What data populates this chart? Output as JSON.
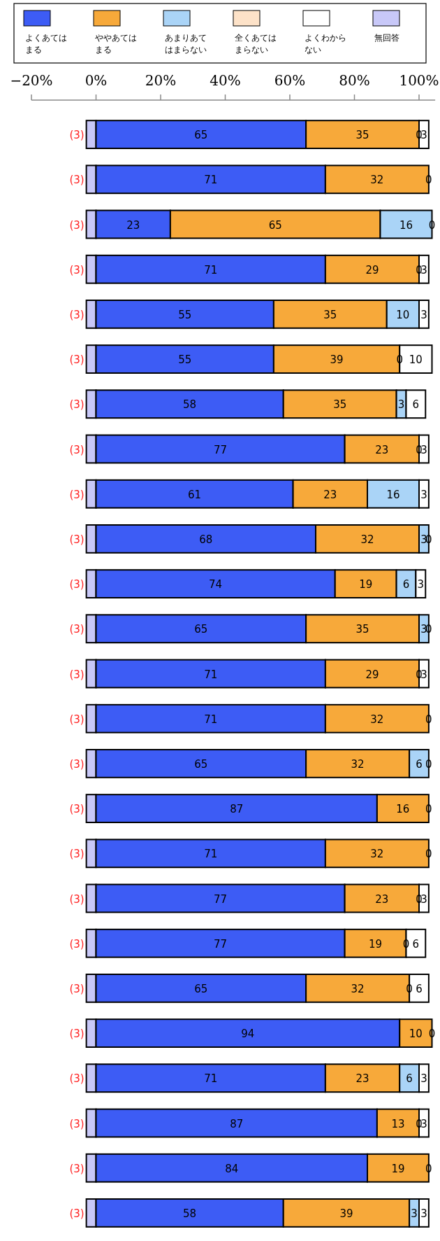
{
  "chart_data": {
    "type": "bar",
    "orientation": "horizontal",
    "stacked": true,
    "legend": "top",
    "grid": false,
    "categories": [
      null,
      null,
      null,
      null,
      null,
      null,
      null,
      null,
      null,
      null,
      null,
      null,
      null,
      null,
      null,
      null,
      null,
      null,
      null,
      null,
      null,
      null,
      null,
      null,
      null
    ],
    "xlim": [
      -20,
      105
    ],
    "xticks": [
      {
        "value": -20,
        "label": "−20%"
      },
      {
        "value": 0,
        "label": "0%"
      },
      {
        "value": 20,
        "label": "20%"
      },
      {
        "value": 40,
        "label": "40%"
      },
      {
        "value": 60,
        "label": "60%"
      },
      {
        "value": 80,
        "label": "80%"
      },
      {
        "value": 100,
        "label": "100%"
      }
    ],
    "series": [
      {
        "name": "無回答",
        "color": "#c8c8f8",
        "values": [
          -3,
          -3,
          -3,
          -3,
          -3,
          -3,
          -3,
          -3,
          -3,
          -3,
          -3,
          -3,
          -3,
          -3,
          -3,
          -3,
          -3,
          -3,
          -3,
          -3,
          -3,
          -3,
          -3,
          -3,
          -3
        ],
        "value_labels": [
          "(3)",
          "(3)",
          "(3)",
          "(3)",
          "(3)",
          "(3)",
          "(3)",
          "(3)",
          "(3)",
          "(3)",
          "(3)",
          "(3)",
          "(3)",
          "(3)",
          "(3)",
          "(3)",
          "(3)",
          "(3)",
          "(3)",
          "(3)",
          "(3)",
          "(3)",
          "(3)",
          "(3)",
          "(3)"
        ]
      },
      {
        "name": "よくあてはまる",
        "color": "#3d5cf5",
        "values": [
          65,
          71,
          23,
          71,
          55,
          55,
          58,
          77,
          61,
          68,
          74,
          65,
          71,
          71,
          65,
          87,
          71,
          77,
          77,
          65,
          94,
          71,
          87,
          84,
          58
        ],
        "value_labels": [
          "65",
          "71",
          "23",
          "71",
          "55",
          "55",
          "58",
          "77",
          "61",
          "68",
          "74",
          "65",
          "71",
          "71",
          "65",
          "87",
          "71",
          "77",
          "77",
          "65",
          "94",
          "71",
          "87",
          "84",
          "58"
        ]
      },
      {
        "name": "ややあてはまる",
        "color": "#f7a93a",
        "values": [
          35,
          32,
          65,
          29,
          35,
          39,
          35,
          23,
          23,
          32,
          19,
          35,
          29,
          32,
          32,
          16,
          32,
          23,
          19,
          32,
          10,
          23,
          13,
          19,
          39
        ],
        "value_labels": [
          "35",
          "32",
          "65",
          "29",
          "35",
          "39",
          "35",
          "23",
          "23",
          "32",
          "19",
          "35",
          "29",
          "32",
          "32",
          "16",
          "32",
          "23",
          "19",
          "32",
          "10",
          "23",
          "13",
          "19",
          "39"
        ]
      },
      {
        "name": "あまりあてはまらない",
        "color": "#aad4f7",
        "values": [
          0,
          0,
          16,
          0,
          10,
          0,
          3,
          0,
          16,
          3,
          6,
          3,
          0,
          0,
          6,
          0,
          0,
          0,
          0,
          0,
          0,
          6,
          0,
          0,
          3
        ],
        "value_labels": [
          "0",
          "0",
          "16",
          "0",
          "10",
          "0",
          "3",
          "0",
          "16",
          "3",
          "6",
          "3",
          "0",
          "0",
          "6",
          "0",
          "0",
          "0",
          "0",
          "0",
          "0",
          "6",
          "0",
          "0",
          "3"
        ]
      },
      {
        "name": "全くあてはまらない",
        "color": "#fde2c8",
        "values": [
          0,
          0,
          0,
          0,
          0,
          0,
          0,
          0,
          0,
          0,
          0,
          0,
          0,
          0,
          0,
          0,
          0,
          0,
          0,
          0,
          0,
          0,
          0,
          0,
          0
        ],
        "value_labels": [
          null,
          null,
          null,
          null,
          null,
          null,
          null,
          null,
          null,
          null,
          null,
          null,
          null,
          null,
          null,
          null,
          null,
          null,
          null,
          null,
          null,
          null,
          null,
          null,
          null
        ]
      },
      {
        "name": "よくわからない",
        "color": "#ffffff",
        "values": [
          3,
          0,
          0,
          3,
          3,
          10,
          6,
          3,
          3,
          0,
          3,
          0,
          3,
          0,
          0,
          0,
          0,
          3,
          6,
          6,
          0,
          3,
          3,
          0,
          3
        ],
        "value_labels": [
          "3",
          null,
          "0",
          "3",
          "3",
          "10",
          "6",
          "3",
          "3",
          "0",
          "3",
          "0",
          "3",
          null,
          "0",
          null,
          null,
          "3",
          "6",
          "6",
          null,
          "3",
          "3",
          null,
          "3"
        ]
      }
    ]
  }
}
